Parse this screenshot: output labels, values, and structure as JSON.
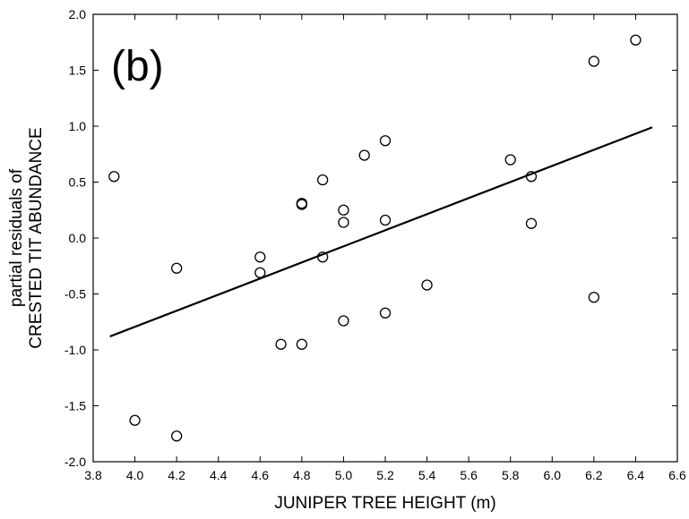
{
  "chart_data": {
    "type": "scatter",
    "panel_label": "(b)",
    "xlabel": "JUNIPER TREE HEIGHT (m)",
    "ylabel_line1": "partial residuals of",
    "ylabel_line2": "CRESTED TIT ABUNDANCE",
    "xlim": [
      3.8,
      6.6
    ],
    "ylim": [
      -2.0,
      2.0
    ],
    "x_ticks": [
      3.8,
      4.0,
      4.2,
      4.4,
      4.6,
      4.8,
      5.0,
      5.2,
      5.4,
      5.6,
      5.8,
      6.0,
      6.2,
      6.4,
      6.6
    ],
    "x_tick_labels": [
      "3.8",
      "4.0",
      "4.2",
      "4.4",
      "4.6",
      "4.8",
      "5.0",
      "5.2",
      "5.4",
      "5.6",
      "5.8",
      "6.0",
      "6.2",
      "6.4",
      "6.6"
    ],
    "y_ticks": [
      -2.0,
      -1.5,
      -1.0,
      -0.5,
      0.0,
      0.5,
      1.0,
      1.5,
      2.0
    ],
    "y_tick_labels": [
      "-2.0",
      "-1.5",
      "-1.0",
      "-0.5",
      "0.0",
      "0.5",
      "1.0",
      "1.5",
      "2.0"
    ],
    "grid": false,
    "points": [
      {
        "x": 3.9,
        "y": 0.55
      },
      {
        "x": 4.0,
        "y": -1.63
      },
      {
        "x": 4.2,
        "y": -0.27
      },
      {
        "x": 4.2,
        "y": -1.77
      },
      {
        "x": 4.6,
        "y": -0.17
      },
      {
        "x": 4.6,
        "y": -0.31
      },
      {
        "x": 4.7,
        "y": -0.95
      },
      {
        "x": 4.8,
        "y": 0.3
      },
      {
        "x": 4.8,
        "y": 0.31
      },
      {
        "x": 4.8,
        "y": -0.95
      },
      {
        "x": 4.9,
        "y": 0.52
      },
      {
        "x": 4.9,
        "y": -0.17
      },
      {
        "x": 5.0,
        "y": 0.25
      },
      {
        "x": 5.0,
        "y": 0.14
      },
      {
        "x": 5.0,
        "y": -0.74
      },
      {
        "x": 5.1,
        "y": 0.74
      },
      {
        "x": 5.2,
        "y": 0.87
      },
      {
        "x": 5.2,
        "y": 0.16
      },
      {
        "x": 5.2,
        "y": -0.67
      },
      {
        "x": 5.4,
        "y": -0.42
      },
      {
        "x": 5.8,
        "y": 0.7
      },
      {
        "x": 5.9,
        "y": 0.55
      },
      {
        "x": 5.9,
        "y": 0.13
      },
      {
        "x": 6.2,
        "y": 1.58
      },
      {
        "x": 6.2,
        "y": -0.53
      },
      {
        "x": 6.4,
        "y": 1.77
      }
    ],
    "fit_line": {
      "x1": 3.88,
      "y1": -0.88,
      "x2": 6.48,
      "y2": 0.99
    }
  }
}
